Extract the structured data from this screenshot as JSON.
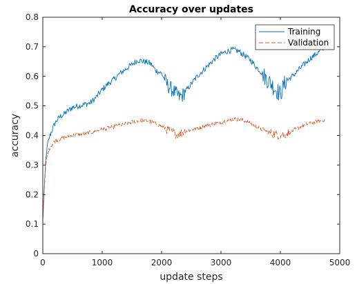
{
  "chart_data": {
    "type": "line",
    "title": "Accuracy over updates",
    "xlabel": "update steps",
    "ylabel": "accuracy",
    "xlim": [
      0,
      5000
    ],
    "ylim": [
      0,
      0.8
    ],
    "xticks": [
      0,
      1000,
      2000,
      3000,
      4000,
      5000
    ],
    "yticks": [
      0,
      0.1,
      0.2,
      0.3,
      0.4,
      0.5,
      0.6,
      0.7,
      0.8
    ],
    "xtick_labels": [
      "0",
      "1000",
      "2000",
      "3000",
      "4000",
      "5000"
    ],
    "ytick_labels": [
      "0",
      "0.1",
      "0.2",
      "0.3",
      "0.4",
      "0.5",
      "0.6",
      "0.7",
      "0.8"
    ],
    "grid": false,
    "legend_position": "top-right",
    "series": [
      {
        "name": "Training",
        "color": "#0072BD",
        "style": "solid",
        "x": [
          0,
          20,
          50,
          80,
          120,
          160,
          200,
          250,
          300,
          350,
          400,
          500,
          600,
          700,
          800,
          900,
          1000,
          1100,
          1200,
          1300,
          1400,
          1500,
          1600,
          1700,
          1800,
          1850,
          1900,
          1950,
          2000,
          2050,
          2100,
          2150,
          2200,
          2250,
          2300,
          2350,
          2400,
          2450,
          2500,
          2600,
          2700,
          2800,
          2900,
          3000,
          3100,
          3200,
          3300,
          3400,
          3500,
          3600,
          3700,
          3750,
          3800,
          3850,
          3900,
          3950,
          4000,
          4050,
          4100,
          4200,
          4300,
          4400,
          4500,
          4600,
          4700,
          4750
        ],
        "y": [
          0.11,
          0.2,
          0.32,
          0.37,
          0.4,
          0.42,
          0.44,
          0.455,
          0.465,
          0.47,
          0.48,
          0.495,
          0.5,
          0.505,
          0.51,
          0.53,
          0.555,
          0.575,
          0.59,
          0.61,
          0.625,
          0.64,
          0.655,
          0.65,
          0.645,
          0.635,
          0.62,
          0.615,
          0.61,
          0.59,
          0.57,
          0.56,
          0.55,
          0.54,
          0.53,
          0.535,
          0.55,
          0.56,
          0.575,
          0.6,
          0.62,
          0.64,
          0.66,
          0.675,
          0.685,
          0.69,
          0.685,
          0.67,
          0.655,
          0.63,
          0.61,
          0.595,
          0.585,
          0.575,
          0.56,
          0.55,
          0.54,
          0.565,
          0.585,
          0.6,
          0.62,
          0.64,
          0.66,
          0.675,
          0.69,
          0.7
        ]
      },
      {
        "name": "Validation",
        "color": "#D95319",
        "style": "dashed",
        "x": [
          0,
          20,
          50,
          80,
          120,
          160,
          200,
          250,
          300,
          400,
          500,
          600,
          700,
          800,
          900,
          1000,
          1100,
          1200,
          1300,
          1400,
          1500,
          1600,
          1700,
          1800,
          1900,
          2000,
          2050,
          2100,
          2150,
          2200,
          2250,
          2300,
          2350,
          2400,
          2500,
          2600,
          2700,
          2800,
          2900,
          3000,
          3100,
          3200,
          3300,
          3400,
          3500,
          3600,
          3700,
          3800,
          3900,
          4000,
          4100,
          4200,
          4300,
          4400,
          4500,
          4600,
          4700,
          4750
        ],
        "y": [
          0.11,
          0.2,
          0.3,
          0.34,
          0.36,
          0.37,
          0.38,
          0.385,
          0.39,
          0.395,
          0.4,
          0.405,
          0.405,
          0.41,
          0.415,
          0.42,
          0.425,
          0.43,
          0.435,
          0.44,
          0.445,
          0.45,
          0.452,
          0.448,
          0.44,
          0.43,
          0.425,
          0.42,
          0.415,
          0.41,
          0.405,
          0.405,
          0.41,
          0.415,
          0.42,
          0.425,
          0.43,
          0.435,
          0.44,
          0.445,
          0.45,
          0.455,
          0.455,
          0.45,
          0.44,
          0.43,
          0.42,
          0.41,
          0.405,
          0.4,
          0.405,
          0.415,
          0.425,
          0.435,
          0.44,
          0.445,
          0.45,
          0.455
        ]
      }
    ]
  }
}
